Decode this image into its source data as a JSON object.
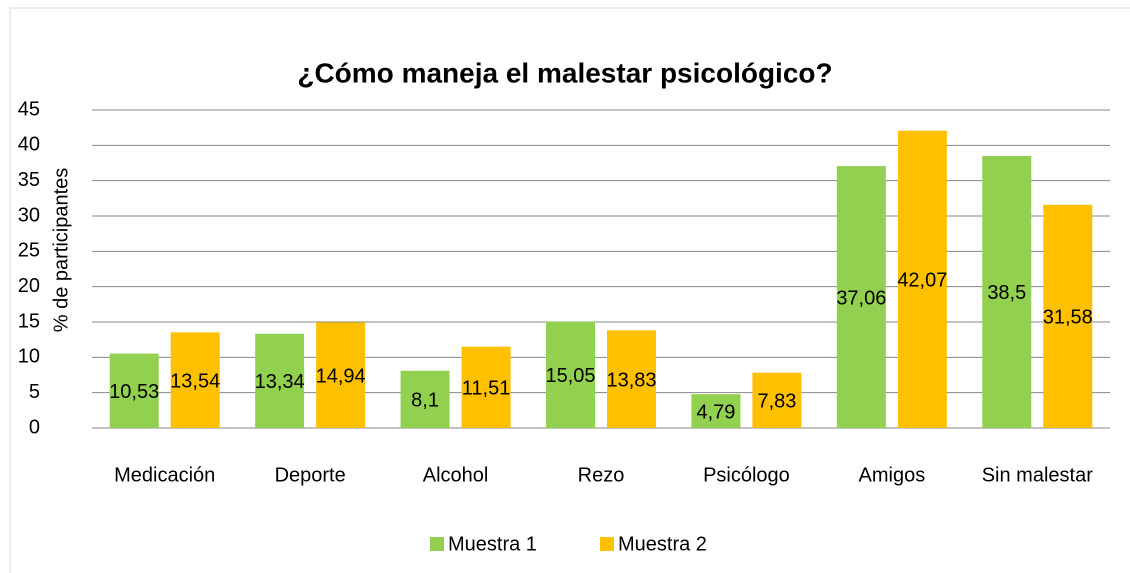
{
  "chart_data": {
    "type": "bar",
    "title": "¿Cómo maneja el malestar psicológico?",
    "y_label": "% de participantes",
    "categories": [
      "Medicación",
      "Deporte",
      "Alcohol",
      "Rezo",
      "Psicólogo",
      "Amigos",
      "Sin malestar"
    ],
    "series": [
      {
        "name": "Muestra 1",
        "color": "#92d050",
        "values": [
          10.53,
          13.34,
          8.1,
          15.05,
          4.79,
          37.06,
          38.5
        ],
        "value_labels": [
          "10,53",
          "13,34",
          "8,1",
          "15,05",
          "4,79",
          "37,06",
          "38,5"
        ]
      },
      {
        "name": "Muestra 2",
        "color": "#ffc000",
        "values": [
          13.54,
          14.94,
          11.51,
          13.83,
          7.83,
          42.07,
          31.58
        ],
        "value_labels": [
          "13,54",
          "14,94",
          "11,51",
          "13,83",
          "7,83",
          "42,07",
          "31,58"
        ]
      }
    ],
    "ylim": [
      0,
      45
    ],
    "yticks": [
      0,
      5,
      10,
      15,
      20,
      25,
      30,
      35,
      40,
      45
    ],
    "grid": true,
    "legend": "bottom"
  }
}
